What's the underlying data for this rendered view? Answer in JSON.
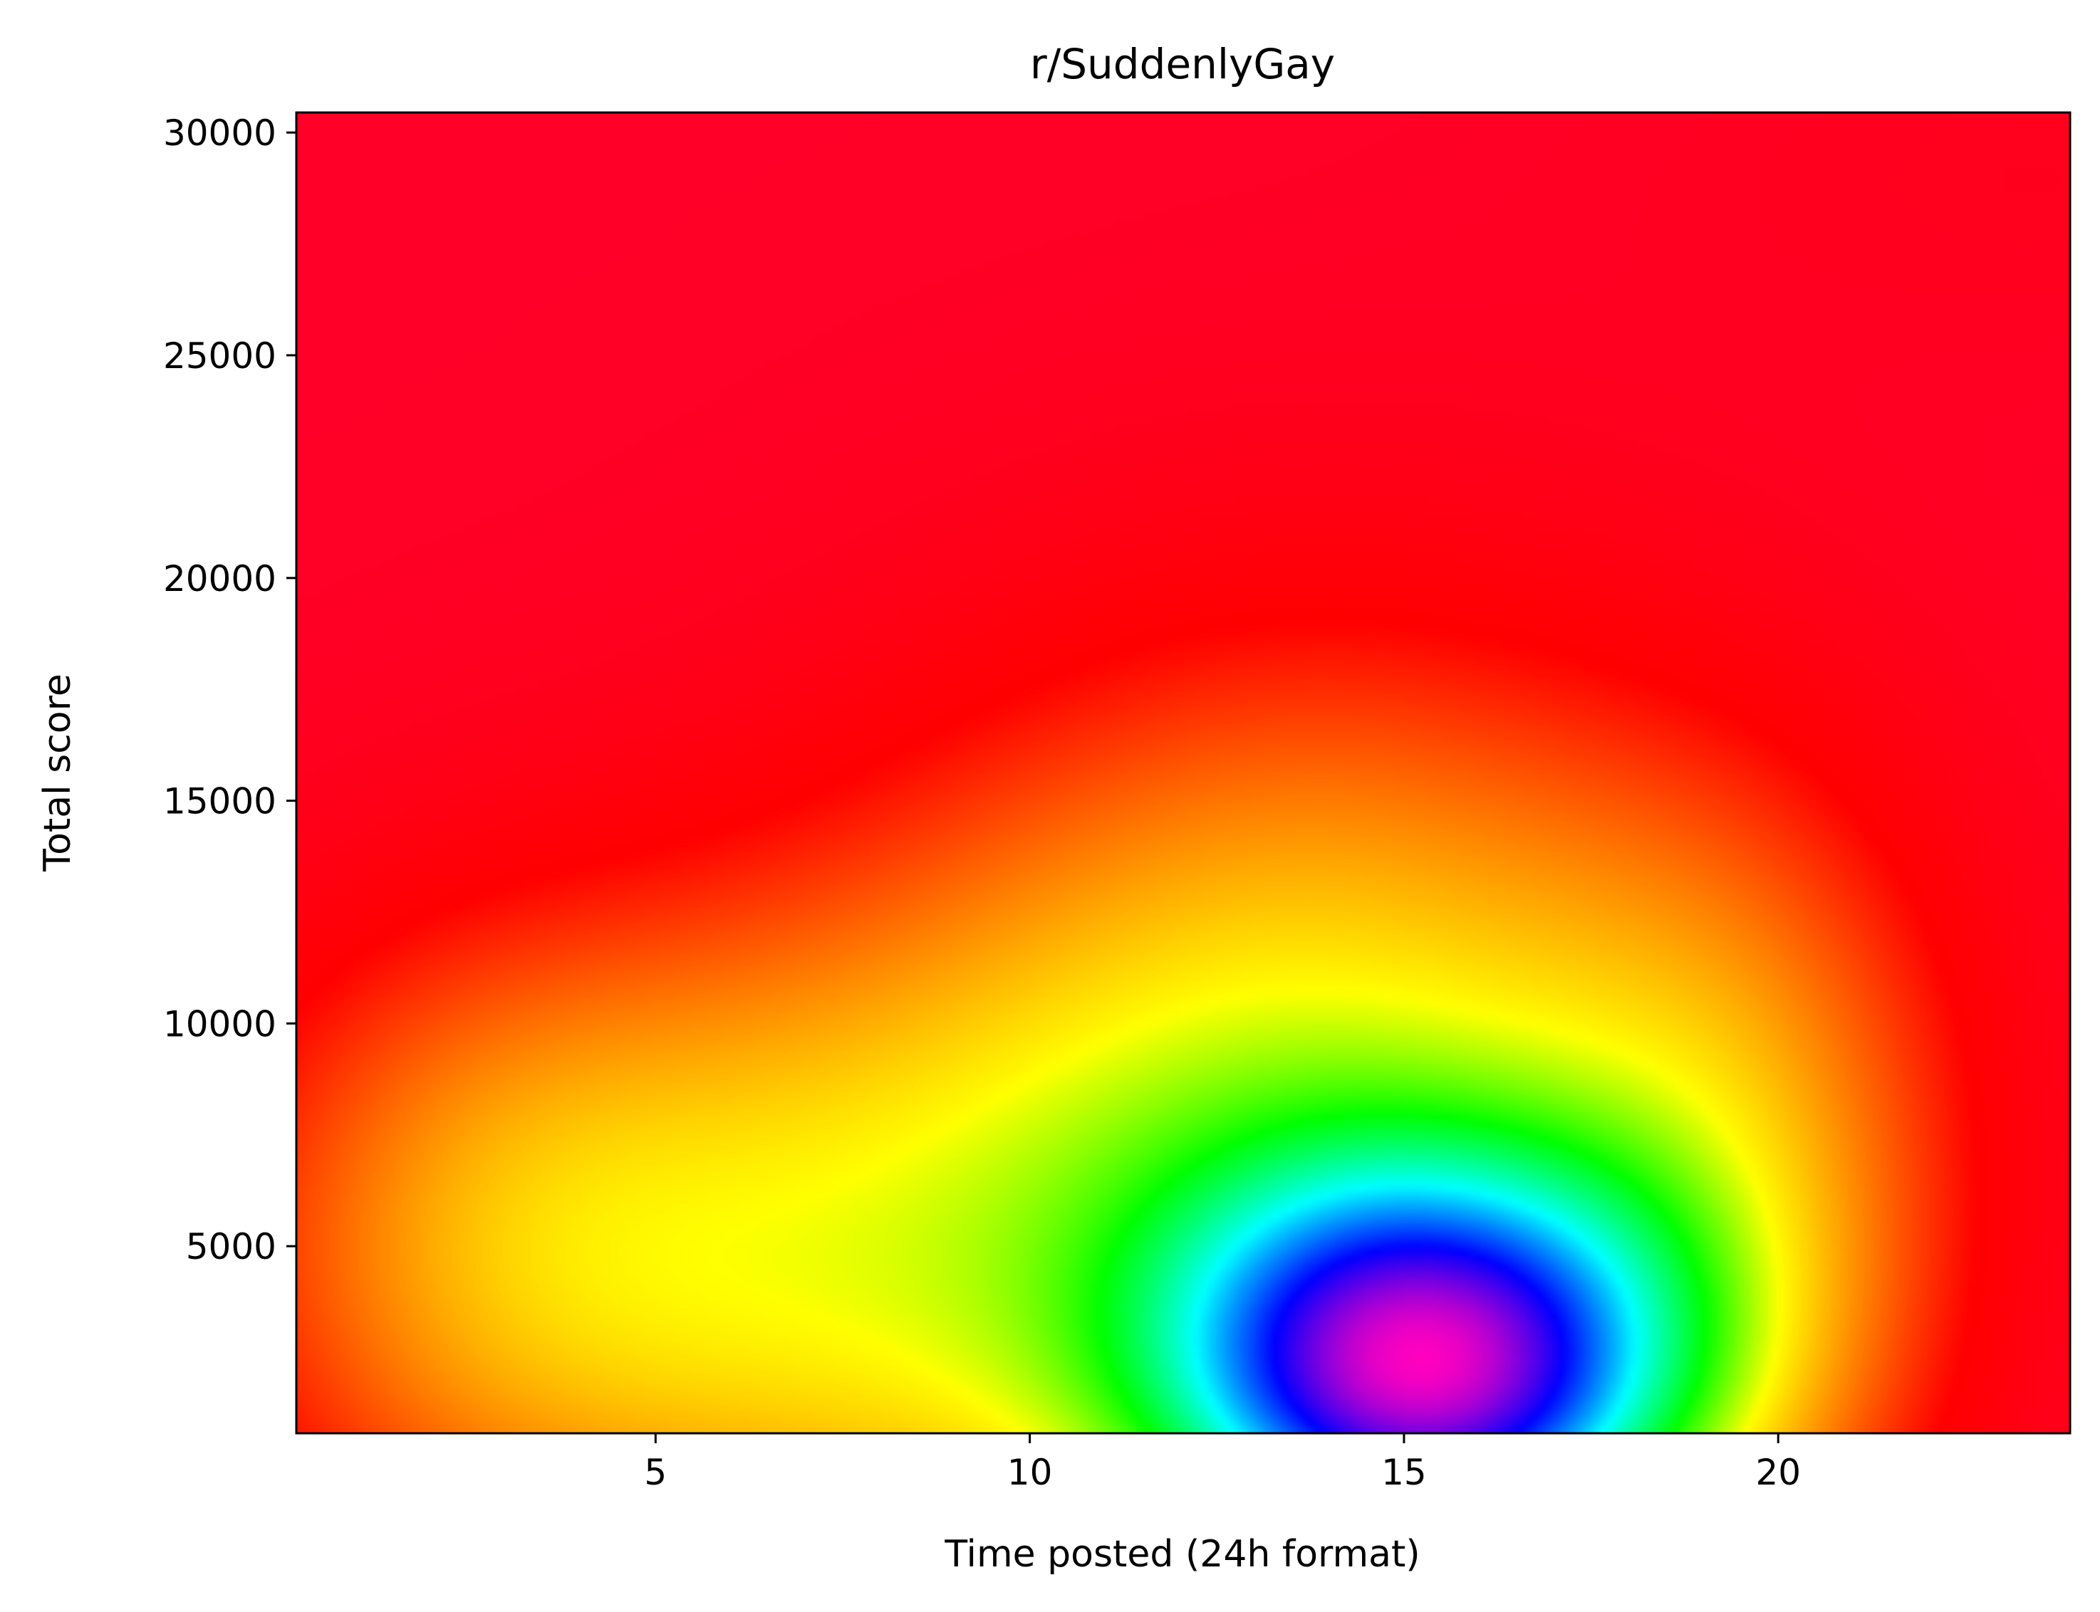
{
  "chart_data": {
    "type": "heatmap",
    "title": "r/SuddenlyGay",
    "xlabel": "Time posted (24h format)",
    "ylabel": "Total score",
    "xlim": [
      0.2,
      23.9
    ],
    "ylim": [
      800,
      30450
    ],
    "x_ticks": [
      "5",
      "10",
      "15",
      "20"
    ],
    "x_tick_values": [
      5,
      10,
      15,
      20
    ],
    "y_ticks": [
      "5000",
      "10000",
      "15000",
      "20000",
      "25000",
      "30000"
    ],
    "y_tick_values": [
      5000,
      10000,
      15000,
      20000,
      25000,
      30000
    ],
    "colormap": "gist_rainbow",
    "colormap_stops": [
      "#ff00bf",
      "#0000ff",
      "#00ffff",
      "#00ff00",
      "#ffff00",
      "#ff8000",
      "#ff0000",
      "#ff0028"
    ],
    "grid": false,
    "description_points": [
      {
        "x": 15.2,
        "y": 2000,
        "level": "highest"
      },
      {
        "x": 14.5,
        "y": 13000,
        "level": "high"
      },
      {
        "x": 3.0,
        "y": 7000,
        "level": "medium"
      },
      {
        "x": 3.0,
        "y": 20000,
        "level": "low"
      },
      {
        "x": 23.0,
        "y": 22000,
        "level": "low"
      }
    ]
  }
}
